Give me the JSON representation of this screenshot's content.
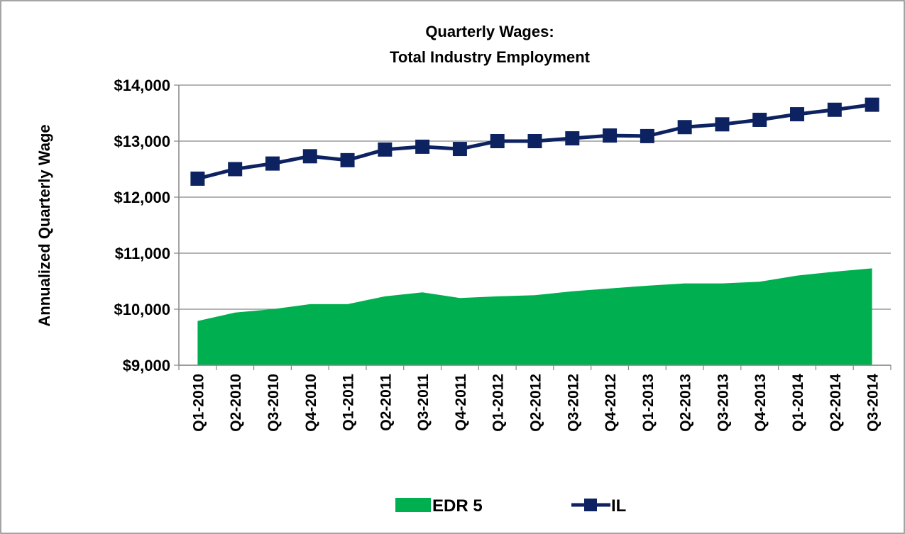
{
  "chart_data": {
    "type": "area-line",
    "title": [
      "Quarterly Wages:",
      "Total Industry Employment"
    ],
    "ylabel": "Annualized Quarterly Wage",
    "categories": [
      "Q1-2010",
      "Q2-2010",
      "Q3-2010",
      "Q4-2010",
      "Q1-2011",
      "Q2-2011",
      "Q3-2011",
      "Q4-2011",
      "Q1-2012",
      "Q2-2012",
      "Q3-2012",
      "Q4-2012",
      "Q1-2013",
      "Q2-2013",
      "Q3-2013",
      "Q4-2013",
      "Q1-2014",
      "Q2-2014",
      "Q3-2014"
    ],
    "series": [
      {
        "name": "EDR 5",
        "type": "area",
        "color": "#00b050",
        "values": [
          9790,
          9940,
          10000,
          10090,
          10090,
          10230,
          10300,
          10200,
          10230,
          10250,
          10320,
          10370,
          10420,
          10460,
          10460,
          10490,
          10600,
          10670,
          10730
        ]
      },
      {
        "name": "IL",
        "type": "line",
        "color": "#0d2260",
        "values": [
          12330,
          12500,
          12600,
          12730,
          12660,
          12850,
          12900,
          12860,
          13000,
          13000,
          13050,
          13100,
          13090,
          13250,
          13300,
          13380,
          13480,
          13560,
          13650
        ]
      }
    ],
    "ylim": [
      9000,
      14000
    ],
    "yticks": [
      {
        "value": 9000,
        "label": "$9,000"
      },
      {
        "value": 10000,
        "label": "$10,000"
      },
      {
        "value": 11000,
        "label": "$11,000"
      },
      {
        "value": 12000,
        "label": "$12,000"
      },
      {
        "value": 13000,
        "label": "$13,000"
      },
      {
        "value": 14000,
        "label": "$14,000"
      }
    ],
    "grid": true,
    "legend": "bottom"
  }
}
